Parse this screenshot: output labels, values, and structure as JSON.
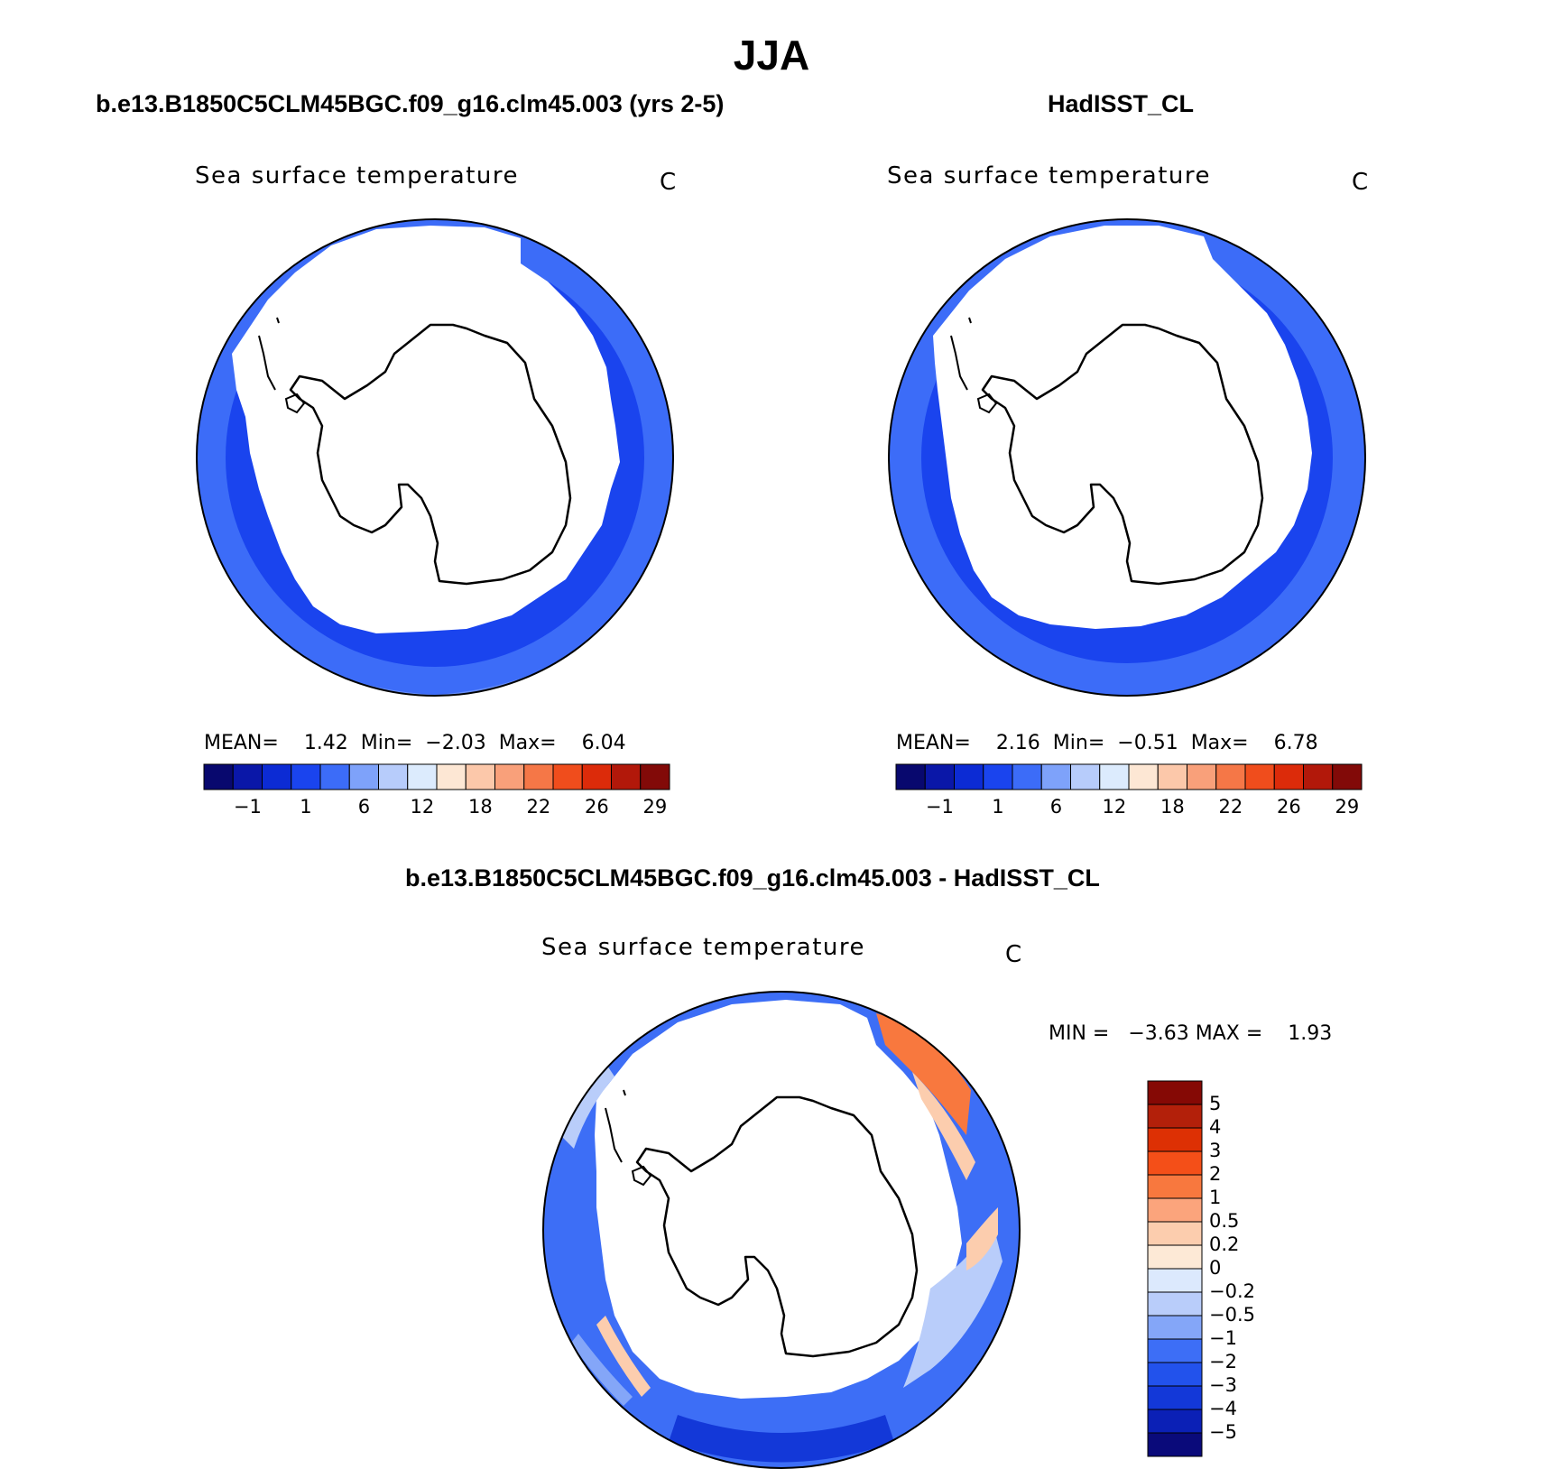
{
  "figure": {
    "title": "JJA"
  },
  "colors": {
    "sst_scale": [
      "#08086e",
      "#0a17a8",
      "#0c2bd4",
      "#1a44ee",
      "#3c6cf8",
      "#7ea2fa",
      "#b7ccfb",
      "#dcebfd",
      "#fde7d4",
      "#fcc8aa",
      "#f9a07a",
      "#f57747",
      "#f04d1c",
      "#dc2b0a",
      "#b2180a",
      "#820a08"
    ],
    "diff_scale": [
      "#0a0a7a",
      "#0b20b6",
      "#1338d8",
      "#2252ec",
      "#3d6ef6",
      "#84a6f8",
      "#b9cdfa",
      "#dce9fd",
      "#fde9d6",
      "#fccdae",
      "#fba47c",
      "#f8783e",
      "#f44f18",
      "#dd3004",
      "#b3200a",
      "#850905"
    ],
    "land": "#ffffff",
    "coast": "#000000"
  },
  "panels": [
    {
      "case_title": "b.e13.B1850C5CLM45BGC.f09_g16.clm45.003 (yrs 2-5)",
      "variable": "Sea surface temperature",
      "units": "C",
      "stats": {
        "mean_label": "MEAN=",
        "mean": "1.42",
        "min_label": "Min=",
        "min": "−2.03",
        "max_label": "Max=",
        "max": "6.04"
      },
      "colorbar_labels": [
        "−1",
        "1",
        "6",
        "12",
        "18",
        "22",
        "26",
        "29"
      ]
    },
    {
      "case_title": "HadISST_CL",
      "variable": "Sea surface temperature",
      "units": "C",
      "stats": {
        "mean_label": "MEAN=",
        "mean": "2.16",
        "min_label": "Min=",
        "min": "−0.51",
        "max_label": "Max=",
        "max": "6.78"
      },
      "colorbar_labels": [
        "−1",
        "1",
        "6",
        "12",
        "18",
        "22",
        "26",
        "29"
      ]
    }
  ],
  "difference": {
    "case_title": "b.e13.B1850C5CLM45BGC.f09_g16.clm45.003 - HadISST_CL",
    "variable": "Sea surface temperature",
    "units": "C",
    "stats": {
      "min_label": "MIN =",
      "min": "−3.63",
      "max_label": "MAX =",
      "max": "1.93"
    },
    "colorbar_labels": [
      "5",
      "4",
      "3",
      "2",
      "1",
      "0.5",
      "0.2",
      "0",
      "−0.2",
      "−0.5",
      "−1",
      "−2",
      "−3",
      "−4",
      "−5"
    ]
  }
}
